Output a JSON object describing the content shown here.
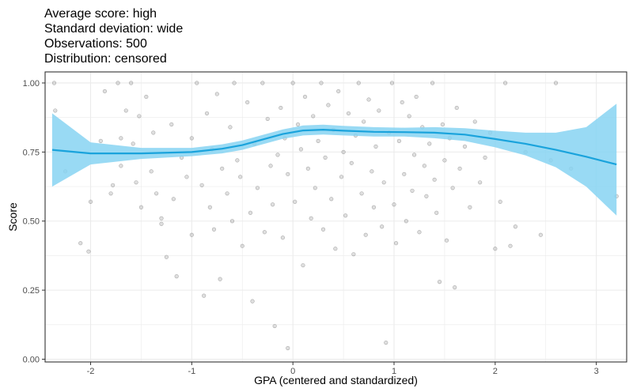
{
  "chart_data": {
    "type": "scatter",
    "title_lines": [
      "Average score: high",
      "Standard deviation: wide",
      "Observations: 500",
      "Distribution: censored"
    ],
    "xlabel": "GPA (centered and standardized)",
    "ylabel": "Score",
    "xlim": [
      -2.45,
      3.3
    ],
    "ylim": [
      -0.01,
      1.04
    ],
    "x_ticks": [
      -2,
      -1,
      0,
      1,
      2,
      3
    ],
    "x_tick_labels": [
      "-2",
      "-1",
      "0",
      "1",
      "2",
      "3"
    ],
    "y_ticks": [
      0.0,
      0.25,
      0.5,
      0.75,
      1.0
    ],
    "y_tick_labels": [
      "0.00",
      "0.25",
      "0.50",
      "0.75",
      "1.00"
    ],
    "grid": true,
    "colors": {
      "points": "#7f7f7f",
      "smooth_line": "#1aa3dc",
      "confidence_band": "#87d3f2",
      "grid_major": "#ebebeb",
      "panel_border": "#333333"
    },
    "smooth": {
      "x": [
        -2.38,
        -2.0,
        -1.5,
        -1.0,
        -0.7,
        -0.5,
        -0.3,
        -0.1,
        0.1,
        0.3,
        0.5,
        0.8,
        1.1,
        1.4,
        1.7,
        2.0,
        2.3,
        2.6,
        2.9,
        3.2
      ],
      "y": [
        0.758,
        0.745,
        0.745,
        0.75,
        0.762,
        0.775,
        0.795,
        0.815,
        0.828,
        0.831,
        0.827,
        0.823,
        0.822,
        0.82,
        0.813,
        0.797,
        0.78,
        0.758,
        0.733,
        0.705
      ],
      "lower": [
        0.625,
        0.705,
        0.725,
        0.735,
        0.745,
        0.758,
        0.778,
        0.798,
        0.81,
        0.813,
        0.81,
        0.806,
        0.806,
        0.8,
        0.79,
        0.767,
        0.738,
        0.695,
        0.625,
        0.52
      ],
      "upper": [
        0.89,
        0.785,
        0.765,
        0.765,
        0.778,
        0.792,
        0.812,
        0.832,
        0.846,
        0.849,
        0.845,
        0.84,
        0.838,
        0.84,
        0.836,
        0.827,
        0.82,
        0.82,
        0.84,
        0.925
      ]
    },
    "points": [
      [
        -2.36,
        1.0
      ],
      [
        -2.35,
        0.9
      ],
      [
        -2.25,
        0.68
      ],
      [
        -2.1,
        0.42
      ],
      [
        -2.02,
        0.39
      ],
      [
        -2.0,
        0.57
      ],
      [
        -1.9,
        0.79
      ],
      [
        -1.86,
        0.97
      ],
      [
        -1.8,
        0.6
      ],
      [
        -1.78,
        0.63
      ],
      [
        -1.73,
        1.0
      ],
      [
        -1.7,
        0.7
      ],
      [
        -1.7,
        0.8
      ],
      [
        -1.65,
        0.9
      ],
      [
        -1.6,
        1.0
      ],
      [
        -1.58,
        0.78
      ],
      [
        -1.55,
        0.64
      ],
      [
        -1.52,
        0.88
      ],
      [
        -1.5,
        0.55
      ],
      [
        -1.45,
        0.95
      ],
      [
        -1.4,
        0.68
      ],
      [
        -1.38,
        0.82
      ],
      [
        -1.35,
        0.6
      ],
      [
        -1.3,
        0.51
      ],
      [
        -1.3,
        0.49
      ],
      [
        -1.25,
        0.37
      ],
      [
        -1.2,
        0.85
      ],
      [
        -1.18,
        0.58
      ],
      [
        -1.15,
        0.3
      ],
      [
        -1.1,
        0.73
      ],
      [
        -1.05,
        0.66
      ],
      [
        -1.0,
        0.8
      ],
      [
        -1.0,
        0.45
      ],
      [
        -0.95,
        1.0
      ],
      [
        -0.9,
        0.63
      ],
      [
        -0.88,
        0.23
      ],
      [
        -0.85,
        0.89
      ],
      [
        -0.82,
        0.55
      ],
      [
        -0.8,
        0.76
      ],
      [
        -0.78,
        0.47
      ],
      [
        -0.75,
        0.96
      ],
      [
        -0.72,
        0.29
      ],
      [
        -0.7,
        0.69
      ],
      [
        -0.65,
        0.6
      ],
      [
        -0.62,
        0.84
      ],
      [
        -0.6,
        0.5
      ],
      [
        -0.58,
        1.0
      ],
      [
        -0.55,
        0.72
      ],
      [
        -0.52,
        0.66
      ],
      [
        -0.5,
        0.41
      ],
      [
        -0.45,
        0.93
      ],
      [
        -0.42,
        0.53
      ],
      [
        -0.4,
        0.21
      ],
      [
        -0.38,
        0.78
      ],
      [
        -0.35,
        0.62
      ],
      [
        -0.3,
        1.0
      ],
      [
        -0.28,
        0.46
      ],
      [
        -0.25,
        0.87
      ],
      [
        -0.22,
        0.7
      ],
      [
        -0.2,
        0.56
      ],
      [
        -0.18,
        0.12
      ],
      [
        -0.15,
        0.74
      ],
      [
        -0.12,
        0.91
      ],
      [
        -0.1,
        0.44
      ],
      [
        -0.08,
        0.8
      ],
      [
        -0.05,
        0.04
      ],
      [
        -0.05,
        0.67
      ],
      [
        0.0,
        1.0
      ],
      [
        0.02,
        0.57
      ],
      [
        0.05,
        0.85
      ],
      [
        0.08,
        0.76
      ],
      [
        0.1,
        0.34
      ],
      [
        0.12,
        0.95
      ],
      [
        0.15,
        0.69
      ],
      [
        0.18,
        0.51
      ],
      [
        0.2,
        0.88
      ],
      [
        0.22,
        0.62
      ],
      [
        0.25,
        0.79
      ],
      [
        0.28,
        1.0
      ],
      [
        0.3,
        0.47
      ],
      [
        0.32,
        0.73
      ],
      [
        0.35,
        0.92
      ],
      [
        0.38,
        0.58
      ],
      [
        0.4,
        0.83
      ],
      [
        0.42,
        0.4
      ],
      [
        0.45,
        0.97
      ],
      [
        0.48,
        0.66
      ],
      [
        0.5,
        0.75
      ],
      [
        0.52,
        0.52
      ],
      [
        0.55,
        0.89
      ],
      [
        0.58,
        0.71
      ],
      [
        0.6,
        0.38
      ],
      [
        0.62,
        0.81
      ],
      [
        0.65,
        1.0
      ],
      [
        0.68,
        0.6
      ],
      [
        0.7,
        0.86
      ],
      [
        0.72,
        0.45
      ],
      [
        0.75,
        0.94
      ],
      [
        0.78,
        0.68
      ],
      [
        0.8,
        0.55
      ],
      [
        0.82,
        0.77
      ],
      [
        0.85,
        0.9
      ],
      [
        0.88,
        0.48
      ],
      [
        0.9,
        0.64
      ],
      [
        0.92,
        0.06
      ],
      [
        0.95,
        0.82
      ],
      [
        0.98,
        1.0
      ],
      [
        1.0,
        0.56
      ],
      [
        1.02,
        0.42
      ],
      [
        1.05,
        0.79
      ],
      [
        1.08,
        0.93
      ],
      [
        1.1,
        0.67
      ],
      [
        1.12,
        0.5
      ],
      [
        1.15,
        0.88
      ],
      [
        1.18,
        0.61
      ],
      [
        1.2,
        0.74
      ],
      [
        1.22,
        0.95
      ],
      [
        1.25,
        0.46
      ],
      [
        1.28,
        0.84
      ],
      [
        1.3,
        0.7
      ],
      [
        1.32,
        0.59
      ],
      [
        1.35,
        0.78
      ],
      [
        1.38,
        1.0
      ],
      [
        1.4,
        0.65
      ],
      [
        1.42,
        0.53
      ],
      [
        1.45,
        0.28
      ],
      [
        1.48,
        0.85
      ],
      [
        1.5,
        0.72
      ],
      [
        1.52,
        0.43
      ],
      [
        1.55,
        0.8
      ],
      [
        1.58,
        0.62
      ],
      [
        1.6,
        0.26
      ],
      [
        1.62,
        0.91
      ],
      [
        1.65,
        0.69
      ],
      [
        1.7,
        0.77
      ],
      [
        1.75,
        0.55
      ],
      [
        1.8,
        0.86
      ],
      [
        1.85,
        0.64
      ],
      [
        1.9,
        0.73
      ],
      [
        1.95,
        0.82
      ],
      [
        2.0,
        0.4
      ],
      [
        2.05,
        0.57
      ],
      [
        2.1,
        1.0
      ],
      [
        2.15,
        0.41
      ],
      [
        2.2,
        0.48
      ],
      [
        2.3,
        0.75
      ],
      [
        2.45,
        0.45
      ],
      [
        2.55,
        0.72
      ],
      [
        2.6,
        1.0
      ],
      [
        2.75,
        0.69
      ],
      [
        3.2,
        0.59
      ]
    ]
  }
}
